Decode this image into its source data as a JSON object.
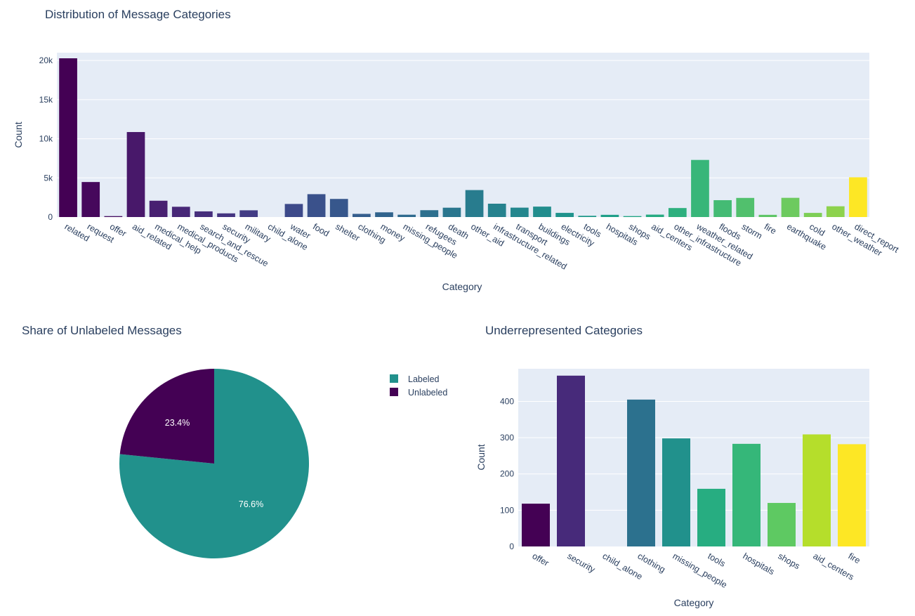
{
  "chart_data": [
    {
      "type": "bar",
      "title": "Distribution of Message Categories",
      "xlabel": "Category",
      "ylabel": "Count",
      "ylim": [
        0,
        21000
      ],
      "yticks": [
        0,
        5000,
        10000,
        15000,
        20000
      ],
      "ytick_labels": [
        "0",
        "5k",
        "10k",
        "15k",
        "20k"
      ],
      "grid": true,
      "categories": [
        "related",
        "request",
        "offer",
        "aid_related",
        "medical_help",
        "medical_products",
        "search_and_rescue",
        "security",
        "military",
        "child_alone",
        "water",
        "food",
        "shelter",
        "clothing",
        "money",
        "missing_people",
        "refugees",
        "death",
        "other_aid",
        "infrastructure_related",
        "transport",
        "buildings",
        "electricity",
        "tools",
        "hospitals",
        "shops",
        "aid_centers",
        "other_infrastructure",
        "weather_related",
        "floods",
        "storm",
        "fire",
        "earthquake",
        "cold",
        "other_weather",
        "direct_report"
      ],
      "values": [
        20282,
        4474,
        118,
        10860,
        2084,
        1313,
        724,
        471,
        860,
        0,
        1672,
        2923,
        2314,
        405,
        604,
        298,
        875,
        1194,
        3446,
        1705,
        1201,
        1333,
        532,
        159,
        283,
        120,
        309,
        1151,
        7297,
        2155,
        2443,
        282,
        2455,
        530,
        1376,
        5075
      ],
      "colors": [
        "#440154",
        "#46085c",
        "#471063",
        "#48186a",
        "#482071",
        "#472777",
        "#462e7c",
        "#453581",
        "#433c85",
        "#404388",
        "#3d4a8a",
        "#3a518b",
        "#37578c",
        "#345e8d",
        "#31648d",
        "#2f6a8e",
        "#2d708e",
        "#2a768e",
        "#287c8e",
        "#26828e",
        "#24878e",
        "#228d8d",
        "#20938c",
        "#1f998a",
        "#1f9f88",
        "#22a585",
        "#27ab82",
        "#2eb07e",
        "#38b679",
        "#44bb74",
        "#51c06d",
        "#5ec566",
        "#6dca5f",
        "#7dce56",
        "#8dd24d",
        "#fde725"
      ]
    },
    {
      "type": "pie",
      "title": "Share of Unlabeled Messages",
      "labels": [
        "Labeled",
        "Unlabeled"
      ],
      "values": [
        76.6,
        23.4
      ],
      "value_labels": [
        "76.6%",
        "23.4%"
      ],
      "colors": [
        "#21918c",
        "#440154"
      ],
      "legend": "top-right"
    },
    {
      "type": "bar",
      "title": "Underrepresented Categories",
      "xlabel": "Category",
      "ylabel": "Count",
      "ylim": [
        0,
        490
      ],
      "yticks": [
        0,
        100,
        200,
        300,
        400
      ],
      "ytick_labels": [
        "0",
        "100",
        "200",
        "300",
        "400"
      ],
      "grid": true,
      "categories": [
        "offer",
        "security",
        "child_alone",
        "clothing",
        "missing_people",
        "tools",
        "hospitals",
        "shops",
        "aid_centers",
        "fire"
      ],
      "values": [
        118,
        471,
        0,
        405,
        298,
        159,
        283,
        120,
        309,
        282
      ],
      "colors": [
        "#440154",
        "#472a7a",
        "#3b518b",
        "#2c718e",
        "#21918c",
        "#27ad81",
        "#35b779",
        "#5ec962",
        "#b5de2b",
        "#fde725"
      ]
    }
  ]
}
